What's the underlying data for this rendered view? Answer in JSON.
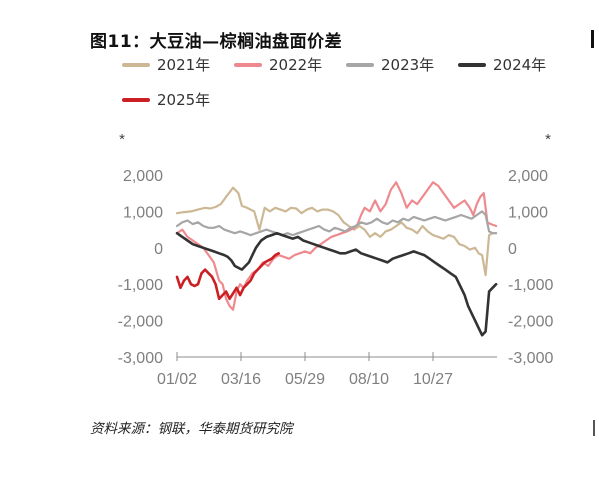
{
  "title": "图11：大豆油—棕榈油盘面价差",
  "source": "资料来源：钢联，华泰期货研究院",
  "chart_data": {
    "type": "line",
    "title": "图11：大豆油—棕榈油盘面价差",
    "left_unit": "*",
    "right_unit": "*",
    "ylim": [
      -3000,
      2000
    ],
    "yticks": [
      2000,
      1000,
      0,
      -1000,
      -2000,
      -3000
    ],
    "ytick_labels": [
      "2,000",
      "1,000",
      "0",
      "-1,000",
      "-2,000",
      "-3,000"
    ],
    "xlim": [
      0,
      365
    ],
    "xticks": [
      0,
      73,
      146,
      219,
      292
    ],
    "xtick_labels": [
      "01/02",
      "03/16",
      "05/29",
      "08/10",
      "10/27"
    ],
    "grid": false,
    "legend_position": "top",
    "series": [
      {
        "name": "2021年",
        "color": "#cdb895",
        "x": [
          0,
          8,
          16,
          24,
          32,
          38,
          44,
          50,
          56,
          64,
          70,
          74,
          80,
          84,
          88,
          94,
          100,
          106,
          112,
          118,
          124,
          130,
          136,
          142,
          148,
          154,
          160,
          166,
          172,
          178,
          184,
          190,
          196,
          202,
          208,
          214,
          220,
          226,
          232,
          238,
          244,
          250,
          256,
          262,
          268,
          274,
          280,
          286,
          292,
          298,
          304,
          310,
          316,
          322,
          328,
          334,
          340,
          344,
          348,
          352,
          356,
          360,
          364
        ],
        "values": [
          950,
          980,
          1000,
          1050,
          1100,
          1080,
          1120,
          1200,
          1400,
          1650,
          1500,
          1150,
          1100,
          1050,
          1000,
          500,
          1100,
          1000,
          1100,
          1050,
          1000,
          1100,
          1080,
          950,
          1050,
          1100,
          1000,
          1050,
          1050,
          1000,
          900,
          700,
          600,
          500,
          600,
          500,
          300,
          400,
          300,
          450,
          500,
          600,
          700,
          550,
          500,
          400,
          600,
          450,
          350,
          300,
          250,
          350,
          300,
          100,
          50,
          -50,
          0,
          -150,
          -200,
          -750,
          350,
          400,
          400
        ]
      },
      {
        "name": "2022年",
        "color": "#ee8a8f",
        "x": [
          0,
          6,
          12,
          18,
          24,
          30,
          36,
          42,
          48,
          52,
          56,
          60,
          64,
          68,
          72,
          76,
          80,
          86,
          92,
          98,
          104,
          110,
          116,
          122,
          128,
          134,
          140,
          146,
          152,
          158,
          164,
          170,
          176,
          182,
          188,
          194,
          198,
          202,
          206,
          210,
          214,
          220,
          226,
          232,
          238,
          244,
          250,
          256,
          262,
          268,
          274,
          280,
          286,
          292,
          298,
          304,
          310,
          316,
          322,
          328,
          334,
          338,
          342,
          346,
          350,
          354,
          358,
          364
        ],
        "values": [
          400,
          500,
          300,
          200,
          100,
          0,
          -200,
          -400,
          -900,
          -1000,
          -1400,
          -1600,
          -1700,
          -1200,
          -1000,
          -1100,
          -900,
          -700,
          -600,
          -400,
          -500,
          -300,
          -200,
          -250,
          -300,
          -200,
          -150,
          -100,
          -150,
          0,
          100,
          200,
          300,
          350,
          400,
          450,
          500,
          550,
          650,
          900,
          1100,
          1000,
          1300,
          1000,
          1200,
          1600,
          1800,
          1500,
          1100,
          1300,
          1200,
          1400,
          1600,
          1800,
          1700,
          1500,
          1300,
          1100,
          1200,
          1300,
          1100,
          900,
          1200,
          1400,
          1500,
          700,
          650,
          600
        ]
      },
      {
        "name": "2023年",
        "color": "#a6a6a6",
        "x": [
          0,
          6,
          12,
          18,
          24,
          30,
          36,
          42,
          48,
          54,
          60,
          66,
          72,
          78,
          84,
          90,
          96,
          102,
          108,
          114,
          120,
          126,
          132,
          138,
          144,
          150,
          156,
          162,
          168,
          174,
          180,
          186,
          192,
          198,
          204,
          210,
          216,
          222,
          228,
          234,
          240,
          246,
          252,
          258,
          264,
          270,
          276,
          282,
          288,
          294,
          300,
          306,
          312,
          318,
          324,
          330,
          336,
          342,
          348,
          352,
          356,
          360,
          364
        ],
        "values": [
          600,
          700,
          750,
          650,
          700,
          600,
          550,
          550,
          600,
          500,
          450,
          400,
          450,
          400,
          350,
          400,
          450,
          500,
          450,
          400,
          350,
          400,
          350,
          400,
          450,
          500,
          550,
          600,
          500,
          450,
          550,
          500,
          450,
          550,
          600,
          700,
          650,
          700,
          800,
          700,
          650,
          750,
          700,
          800,
          750,
          850,
          800,
          750,
          800,
          850,
          800,
          750,
          800,
          850,
          900,
          850,
          800,
          900,
          1000,
          900,
          450,
          400,
          400
        ]
      },
      {
        "name": "2024年",
        "color": "#333333",
        "x": [
          0,
          6,
          12,
          18,
          24,
          30,
          36,
          42,
          48,
          54,
          58,
          62,
          66,
          70,
          74,
          78,
          82,
          86,
          90,
          96,
          102,
          108,
          114,
          120,
          126,
          132,
          138,
          144,
          150,
          156,
          162,
          168,
          174,
          180,
          186,
          192,
          198,
          204,
          210,
          216,
          222,
          228,
          234,
          240,
          246,
          252,
          258,
          264,
          270,
          276,
          282,
          288,
          294,
          300,
          306,
          312,
          318,
          324,
          328,
          332,
          336,
          340,
          344,
          348,
          352,
          356,
          360,
          364
        ],
        "values": [
          400,
          300,
          200,
          100,
          50,
          0,
          -50,
          -100,
          -150,
          -200,
          -250,
          -350,
          -500,
          -550,
          -600,
          -500,
          -400,
          -200,
          0,
          200,
          300,
          350,
          400,
          350,
          300,
          250,
          300,
          200,
          150,
          100,
          50,
          0,
          -50,
          -100,
          -150,
          -150,
          -100,
          -50,
          -150,
          -200,
          -250,
          -300,
          -350,
          -400,
          -300,
          -250,
          -200,
          -150,
          -100,
          -150,
          -200,
          -300,
          -400,
          -500,
          -600,
          -700,
          -800,
          -1100,
          -1300,
          -1600,
          -1800,
          -2000,
          -2200,
          -2400,
          -2300,
          -1200,
          -1100,
          -1000
        ]
      },
      {
        "name": "2025年",
        "color": "#cc1f24",
        "x": [
          0,
          4,
          8,
          12,
          16,
          20,
          24,
          28,
          32,
          36,
          40,
          44,
          48,
          52,
          56,
          60,
          64,
          68,
          72,
          76,
          80,
          84,
          88,
          92,
          96,
          100,
          104,
          108,
          112,
          116
        ],
        "values": [
          -800,
          -1100,
          -900,
          -800,
          -1000,
          -1050,
          -1000,
          -700,
          -600,
          -700,
          -800,
          -1000,
          -1400,
          -1300,
          -1200,
          -1400,
          -1250,
          -1100,
          -1300,
          -1100,
          -1000,
          -900,
          -700,
          -600,
          -500,
          -400,
          -350,
          -300,
          -200,
          -150
        ]
      }
    ]
  }
}
